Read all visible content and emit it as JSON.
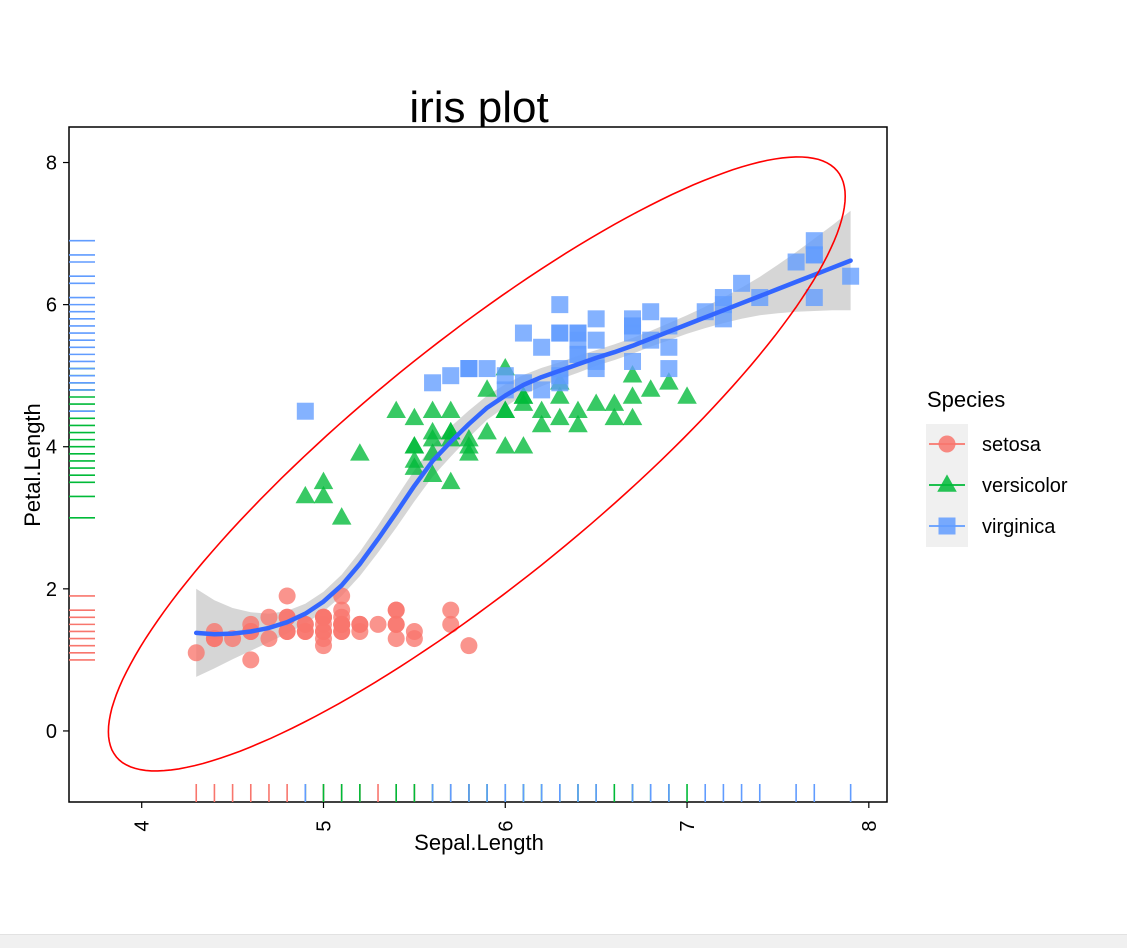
{
  "chart_data": {
    "type": "scatter",
    "title": "iris plot",
    "xlabel": "Sepal.Length",
    "ylabel": "Petal.Length",
    "xlim": [
      3.6,
      8.1
    ],
    "ylim": [
      -1.0,
      8.5
    ],
    "x_ticks": [
      4,
      5,
      6,
      7,
      8
    ],
    "y_ticks": [
      0,
      2,
      4,
      6,
      8
    ],
    "grid": false,
    "legend": {
      "title": "Species",
      "placement": "right",
      "entries": [
        "setosa",
        "versicolor",
        "virginica"
      ]
    },
    "series": [
      {
        "name": "setosa",
        "shape": "circle",
        "color": "#F8766D",
        "points": [
          [
            5.1,
            1.4
          ],
          [
            4.9,
            1.4
          ],
          [
            4.7,
            1.3
          ],
          [
            4.6,
            1.5
          ],
          [
            5.0,
            1.4
          ],
          [
            5.4,
            1.7
          ],
          [
            4.6,
            1.4
          ],
          [
            5.0,
            1.5
          ],
          [
            4.4,
            1.4
          ],
          [
            4.9,
            1.5
          ],
          [
            5.4,
            1.5
          ],
          [
            4.8,
            1.6
          ],
          [
            4.8,
            1.4
          ],
          [
            4.3,
            1.1
          ],
          [
            5.8,
            1.2
          ],
          [
            5.7,
            1.5
          ],
          [
            5.4,
            1.3
          ],
          [
            5.1,
            1.4
          ],
          [
            5.7,
            1.7
          ],
          [
            5.1,
            1.5
          ],
          [
            5.4,
            1.7
          ],
          [
            5.1,
            1.5
          ],
          [
            4.6,
            1.0
          ],
          [
            5.1,
            1.7
          ],
          [
            4.8,
            1.9
          ],
          [
            5.0,
            1.6
          ],
          [
            5.0,
            1.6
          ],
          [
            5.2,
            1.5
          ],
          [
            5.2,
            1.4
          ],
          [
            4.7,
            1.6
          ],
          [
            4.8,
            1.6
          ],
          [
            5.4,
            1.5
          ],
          [
            5.2,
            1.5
          ],
          [
            5.5,
            1.4
          ],
          [
            4.9,
            1.5
          ],
          [
            5.0,
            1.2
          ],
          [
            5.5,
            1.3
          ],
          [
            4.9,
            1.4
          ],
          [
            4.4,
            1.3
          ],
          [
            5.1,
            1.5
          ],
          [
            5.0,
            1.3
          ],
          [
            4.5,
            1.3
          ],
          [
            4.4,
            1.3
          ],
          [
            5.0,
            1.6
          ],
          [
            5.1,
            1.9
          ],
          [
            4.8,
            1.4
          ],
          [
            5.1,
            1.6
          ],
          [
            4.6,
            1.4
          ],
          [
            5.3,
            1.5
          ],
          [
            5.0,
            1.4
          ]
        ]
      },
      {
        "name": "versicolor",
        "shape": "triangle",
        "color": "#00BA38",
        "points": [
          [
            7.0,
            4.7
          ],
          [
            6.4,
            4.5
          ],
          [
            6.9,
            4.9
          ],
          [
            5.5,
            4.0
          ],
          [
            6.5,
            4.6
          ],
          [
            5.7,
            4.5
          ],
          [
            6.3,
            4.7
          ],
          [
            4.9,
            3.3
          ],
          [
            6.6,
            4.6
          ],
          [
            5.2,
            3.9
          ],
          [
            5.0,
            3.5
          ],
          [
            5.9,
            4.2
          ],
          [
            6.0,
            4.0
          ],
          [
            6.1,
            4.7
          ],
          [
            5.6,
            3.6
          ],
          [
            6.7,
            4.4
          ],
          [
            5.6,
            4.5
          ],
          [
            5.8,
            4.1
          ],
          [
            6.2,
            4.5
          ],
          [
            5.6,
            3.9
          ],
          [
            5.9,
            4.8
          ],
          [
            6.1,
            4.0
          ],
          [
            6.3,
            4.9
          ],
          [
            6.1,
            4.7
          ],
          [
            6.4,
            4.3
          ],
          [
            6.6,
            4.4
          ],
          [
            6.8,
            4.8
          ],
          [
            6.7,
            5.0
          ],
          [
            6.0,
            4.5
          ],
          [
            5.7,
            3.5
          ],
          [
            5.5,
            3.8
          ],
          [
            5.5,
            3.7
          ],
          [
            5.8,
            3.9
          ],
          [
            6.0,
            5.1
          ],
          [
            5.4,
            4.5
          ],
          [
            6.0,
            4.5
          ],
          [
            6.7,
            4.7
          ],
          [
            6.3,
            4.4
          ],
          [
            5.6,
            4.1
          ],
          [
            5.5,
            4.0
          ],
          [
            5.5,
            4.4
          ],
          [
            6.1,
            4.6
          ],
          [
            5.8,
            4.0
          ],
          [
            5.0,
            3.3
          ],
          [
            5.6,
            4.2
          ],
          [
            5.7,
            4.2
          ],
          [
            5.7,
            4.2
          ],
          [
            6.2,
            4.3
          ],
          [
            5.1,
            3.0
          ],
          [
            5.7,
            4.1
          ]
        ]
      },
      {
        "name": "virginica",
        "shape": "square",
        "color": "#619CFF",
        "points": [
          [
            6.3,
            6.0
          ],
          [
            5.8,
            5.1
          ],
          [
            7.1,
            5.9
          ],
          [
            6.3,
            5.6
          ],
          [
            6.5,
            5.8
          ],
          [
            7.6,
            6.6
          ],
          [
            4.9,
            4.5
          ],
          [
            7.3,
            6.3
          ],
          [
            6.7,
            5.8
          ],
          [
            7.2,
            6.1
          ],
          [
            6.5,
            5.1
          ],
          [
            6.4,
            5.3
          ],
          [
            6.8,
            5.5
          ],
          [
            5.7,
            5.0
          ],
          [
            5.8,
            5.1
          ],
          [
            6.4,
            5.3
          ],
          [
            6.5,
            5.5
          ],
          [
            7.7,
            6.7
          ],
          [
            7.7,
            6.9
          ],
          [
            6.0,
            5.0
          ],
          [
            6.9,
            5.7
          ],
          [
            5.6,
            4.9
          ],
          [
            7.7,
            6.7
          ],
          [
            6.3,
            4.9
          ],
          [
            6.7,
            5.7
          ],
          [
            7.2,
            6.0
          ],
          [
            6.2,
            4.8
          ],
          [
            6.1,
            4.9
          ],
          [
            6.4,
            5.6
          ],
          [
            7.2,
            5.8
          ],
          [
            7.4,
            6.1
          ],
          [
            7.9,
            6.4
          ],
          [
            6.4,
            5.6
          ],
          [
            6.3,
            5.1
          ],
          [
            6.1,
            5.6
          ],
          [
            7.7,
            6.1
          ],
          [
            6.3,
            5.6
          ],
          [
            6.4,
            5.5
          ],
          [
            6.0,
            4.8
          ],
          [
            6.9,
            5.4
          ],
          [
            6.7,
            5.6
          ],
          [
            6.9,
            5.1
          ],
          [
            5.8,
            5.1
          ],
          [
            6.8,
            5.9
          ],
          [
            6.7,
            5.7
          ],
          [
            6.7,
            5.2
          ],
          [
            6.3,
            5.0
          ],
          [
            6.5,
            5.2
          ],
          [
            6.2,
            5.4
          ],
          [
            5.9,
            5.1
          ]
        ]
      }
    ],
    "smooth": {
      "method": "loess",
      "color": "#3366FF",
      "band_color": "#999999",
      "points": [
        [
          4.3,
          1.38
        ],
        [
          4.4,
          1.36
        ],
        [
          4.5,
          1.37
        ],
        [
          4.6,
          1.4
        ],
        [
          4.7,
          1.45
        ],
        [
          4.8,
          1.53
        ],
        [
          4.9,
          1.65
        ],
        [
          5.0,
          1.82
        ],
        [
          5.1,
          2.05
        ],
        [
          5.2,
          2.35
        ],
        [
          5.3,
          2.7
        ],
        [
          5.4,
          3.07
        ],
        [
          5.5,
          3.45
        ],
        [
          5.6,
          3.8
        ],
        [
          5.7,
          4.07
        ],
        [
          5.8,
          4.32
        ],
        [
          5.9,
          4.55
        ],
        [
          6.0,
          4.72
        ],
        [
          6.1,
          4.87
        ],
        [
          6.2,
          4.98
        ],
        [
          6.3,
          5.07
        ],
        [
          6.4,
          5.16
        ],
        [
          6.5,
          5.25
        ],
        [
          6.6,
          5.33
        ],
        [
          6.7,
          5.42
        ],
        [
          6.8,
          5.52
        ],
        [
          6.9,
          5.62
        ],
        [
          7.0,
          5.72
        ],
        [
          7.1,
          5.82
        ],
        [
          7.2,
          5.92
        ],
        [
          7.3,
          6.02
        ],
        [
          7.4,
          6.12
        ],
        [
          7.5,
          6.22
        ],
        [
          7.6,
          6.32
        ],
        [
          7.7,
          6.42
        ],
        [
          7.8,
          6.52
        ],
        [
          7.9,
          6.62
        ]
      ],
      "band_halfwidth": [
        0.62,
        0.48,
        0.36,
        0.27,
        0.2,
        0.16,
        0.14,
        0.14,
        0.15,
        0.17,
        0.19,
        0.21,
        0.22,
        0.22,
        0.21,
        0.19,
        0.17,
        0.16,
        0.14,
        0.13,
        0.12,
        0.12,
        0.11,
        0.11,
        0.11,
        0.11,
        0.12,
        0.13,
        0.15,
        0.18,
        0.22,
        0.27,
        0.34,
        0.42,
        0.51,
        0.6,
        0.7
      ]
    },
    "ellipse": {
      "color": "#FF0000",
      "center": [
        5.84,
        3.76
      ],
      "points_at_axes": [
        [
          4.1,
          -0.6
        ],
        [
          7.7,
          8.1
        ]
      ]
    },
    "rugs": true
  }
}
